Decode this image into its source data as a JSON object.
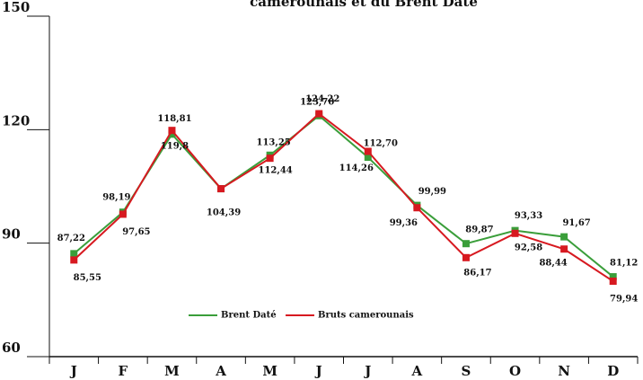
{
  "chart_data": {
    "type": "line",
    "title": "camerounais et du Brent Daté",
    "categories": [
      "J",
      "F",
      "M",
      "A",
      "M",
      "J",
      "J",
      "A",
      "S",
      "O",
      "N",
      "D"
    ],
    "ylim": [
      60,
      150
    ],
    "yticks": [
      60,
      90,
      120,
      150
    ],
    "legend": "center",
    "series": [
      {
        "name": "Brent Daté",
        "color": "#3a9e3a",
        "values": [
          87.22,
          98.19,
          118.81,
          104.39,
          113.25,
          123.7,
          112.7,
          99.99,
          89.87,
          93.33,
          91.67,
          81.12
        ],
        "value_labels": [
          "87,22",
          "98,19",
          "118,81",
          "104,39",
          "113,25",
          "123,70",
          "112,70",
          "99,99",
          "89,87",
          "93,33",
          "91,67",
          "81,12"
        ]
      },
      {
        "name": "Bruts camerounais",
        "color": "#d71920",
        "values": [
          85.55,
          97.65,
          119.8,
          104.39,
          112.44,
          124.22,
          114.26,
          99.36,
          86.17,
          92.58,
          88.44,
          79.94
        ],
        "value_labels": [
          "85,55",
          "97,65",
          "119,8",
          null,
          "112,44",
          "124,22",
          "114,26",
          "99,36",
          "86,17",
          "92,58",
          "88,44",
          "79,94"
        ]
      }
    ]
  }
}
